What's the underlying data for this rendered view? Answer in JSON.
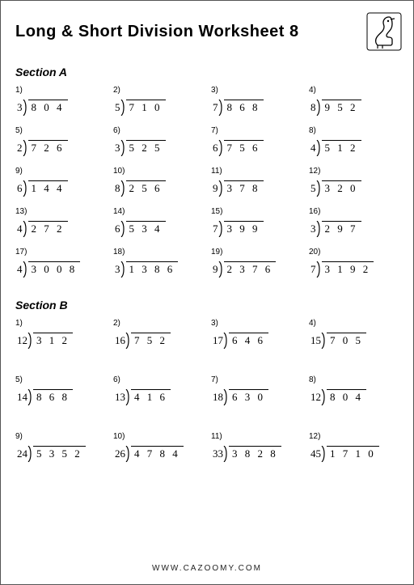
{
  "title": "Long & Short Division Worksheet 8",
  "footer": "WWW.CAZOOMY.COM",
  "sections": [
    {
      "name": "Section A",
      "rows": 5,
      "problems": [
        {
          "n": "1)",
          "d": "3",
          "v": "8 0 4"
        },
        {
          "n": "2)",
          "d": "5",
          "v": "7 1 0"
        },
        {
          "n": "3)",
          "d": "7",
          "v": "8 6 8"
        },
        {
          "n": "4)",
          "d": "8",
          "v": "9 5 2"
        },
        {
          "n": "5)",
          "d": "2",
          "v": "7 2 6"
        },
        {
          "n": "6)",
          "d": "3",
          "v": "5 2 5"
        },
        {
          "n": "7)",
          "d": "6",
          "v": "7 5 6"
        },
        {
          "n": "8)",
          "d": "4",
          "v": "5 1 2"
        },
        {
          "n": "9)",
          "d": "6",
          "v": "1 4 4"
        },
        {
          "n": "10)",
          "d": "8",
          "v": "2 5 6"
        },
        {
          "n": "11)",
          "d": "9",
          "v": "3 7 8"
        },
        {
          "n": "12)",
          "d": "5",
          "v": "3 2 0"
        },
        {
          "n": "13)",
          "d": "4",
          "v": "2 7 2"
        },
        {
          "n": "14)",
          "d": "6",
          "v": "5 3 4"
        },
        {
          "n": "15)",
          "d": "7",
          "v": "3 9 9"
        },
        {
          "n": "16)",
          "d": "3",
          "v": "2 9 7"
        },
        {
          "n": "17)",
          "d": "4",
          "v": "3 0 0 8"
        },
        {
          "n": "18)",
          "d": "3",
          "v": "1 3 8 6"
        },
        {
          "n": "19)",
          "d": "9",
          "v": "2 3 7 6"
        },
        {
          "n": "20)",
          "d": "7",
          "v": "3 1 9 2"
        }
      ]
    },
    {
      "name": "Section B",
      "rows": 3,
      "problems": [
        {
          "n": "1)",
          "d": "12",
          "v": "3 1 2"
        },
        {
          "n": "2)",
          "d": "16",
          "v": "7 5 2"
        },
        {
          "n": "3)",
          "d": "17",
          "v": "6 4 6"
        },
        {
          "n": "4)",
          "d": "15",
          "v": "7 0 5"
        },
        {
          "n": "5)",
          "d": "14",
          "v": "8 6 8"
        },
        {
          "n": "6)",
          "d": "13",
          "v": "4 1 6"
        },
        {
          "n": "7)",
          "d": "18",
          "v": "6 3 0"
        },
        {
          "n": "8)",
          "d": "12",
          "v": "8 0 4"
        },
        {
          "n": "9)",
          "d": "24",
          "v": "5 3 5 2"
        },
        {
          "n": "10)",
          "d": "26",
          "v": "4 7 8 4"
        },
        {
          "n": "11)",
          "d": "33",
          "v": "3 8 2 8"
        },
        {
          "n": "12)",
          "d": "45",
          "v": "1 7 1 0"
        }
      ]
    }
  ]
}
